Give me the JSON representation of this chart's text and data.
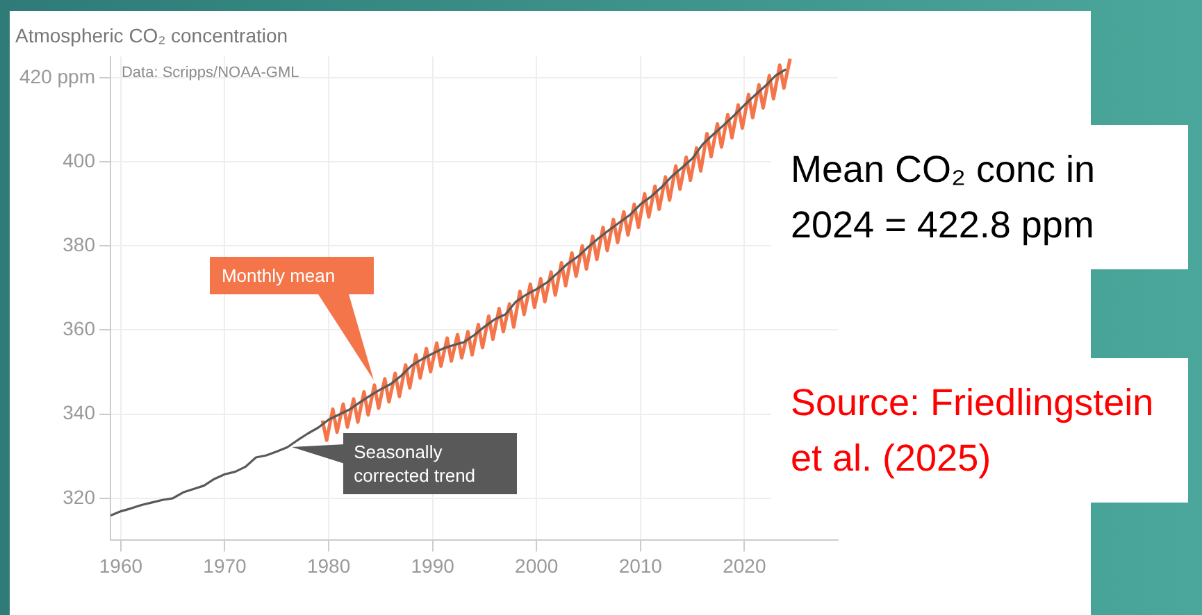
{
  "chart_data": {
    "type": "line",
    "title": "Atmospheric CO₂ concentration",
    "subtitle": "Data: Scripps/NOAA-GML",
    "annotations": [
      "Mean CO₂ conc in 2024 = 422.8 ppm",
      "Source: Friedlingstein et al. (2025)"
    ],
    "xlim": [
      1959,
      2029
    ],
    "xticks": [
      1960,
      1970,
      1980,
      1990,
      2000,
      2010,
      2020
    ],
    "ylim": [
      310,
      425
    ],
    "yticks": [
      320,
      340,
      360,
      380,
      400,
      {
        "value": 420,
        "label": "420 ppm"
      }
    ],
    "grid": true,
    "series": [
      {
        "name": "Monthly mean",
        "color": "#f4754a",
        "x": [
          1979.4,
          1979.8,
          1980.4,
          1980.8,
          1981.4,
          1981.8,
          1982.4,
          1982.8,
          1983.4,
          1983.8,
          1984.4,
          1984.8,
          1985.4,
          1985.8,
          1986.4,
          1986.8,
          1987.4,
          1987.8,
          1988.4,
          1988.8,
          1989.4,
          1989.8,
          1990.4,
          1990.8,
          1991.4,
          1991.8,
          1992.4,
          1992.8,
          1993.4,
          1993.8,
          1994.4,
          1994.8,
          1995.4,
          1995.8,
          1996.4,
          1996.8,
          1997.4,
          1997.8,
          1998.4,
          1998.8,
          1999.4,
          1999.8,
          2000.4,
          2000.8,
          2001.4,
          2001.8,
          2002.4,
          2002.8,
          2003.4,
          2003.8,
          2004.4,
          2004.8,
          2005.4,
          2005.8,
          2006.4,
          2006.8,
          2007.4,
          2007.8,
          2008.4,
          2008.8,
          2009.4,
          2009.8,
          2010.4,
          2010.8,
          2011.4,
          2011.8,
          2012.4,
          2012.8,
          2013.4,
          2013.8,
          2014.4,
          2014.8,
          2015.4,
          2015.8,
          2016.4,
          2016.8,
          2017.4,
          2017.8,
          2018.4,
          2018.8,
          2019.4,
          2019.8,
          2020.4,
          2020.8,
          2021.4,
          2021.8,
          2022.4,
          2022.8,
          2023.4,
          2023.8,
          2024.4
        ],
        "values": [
          338.5,
          333.8,
          341.2,
          335.7,
          342.4,
          336.9,
          343.6,
          338.1,
          345.3,
          339.8,
          346.9,
          341.4,
          348.4,
          342.9,
          349.7,
          344.2,
          351.7,
          346.2,
          354.1,
          348.6,
          355.6,
          350.1,
          356.9,
          351.4,
          358.1,
          352.6,
          358.9,
          353.4,
          359.6,
          354.1,
          361.3,
          355.8,
          363.3,
          357.8,
          365.1,
          359.6,
          366.2,
          360.7,
          369.2,
          363.7,
          370.9,
          365.4,
          372.2,
          366.7,
          373.8,
          368.3,
          376.0,
          370.5,
          378.3,
          372.8,
          380.0,
          374.5,
          382.3,
          376.8,
          384.4,
          378.9,
          386.3,
          380.8,
          388.1,
          382.6,
          389.9,
          384.4,
          392.4,
          386.9,
          394.2,
          388.7,
          396.4,
          390.9,
          399.0,
          393.5,
          401.1,
          395.6,
          403.3,
          397.8,
          406.7,
          401.2,
          409.0,
          403.5,
          411.2,
          405.7,
          413.5,
          408.0,
          416.0,
          410.5,
          418.3,
          412.8,
          420.5,
          415.0,
          423.0,
          417.5,
          424.5
        ]
      },
      {
        "name": "Seasonally corrected trend",
        "color": "#595959",
        "x": [
          1959,
          1960,
          1961,
          1962,
          1963,
          1964,
          1965,
          1966,
          1967,
          1968,
          1969,
          1970,
          1971,
          1972,
          1973,
          1974,
          1975,
          1976,
          1977,
          1978,
          1979,
          1980,
          1981,
          1982,
          1983,
          1984,
          1985,
          1986,
          1987,
          1988,
          1989,
          1990,
          1991,
          1992,
          1993,
          1994,
          1995,
          1996,
          1997,
          1998,
          1999,
          2000,
          2001,
          2002,
          2003,
          2004,
          2005,
          2006,
          2007,
          2008,
          2009,
          2010,
          2011,
          2012,
          2013,
          2014,
          2015,
          2016,
          2017,
          2018,
          2019,
          2020,
          2021,
          2022,
          2023,
          2024
        ],
        "values": [
          315.9,
          316.9,
          317.6,
          318.4,
          319.0,
          319.6,
          320.0,
          321.4,
          322.2,
          323.0,
          324.6,
          325.7,
          326.3,
          327.5,
          329.7,
          330.2,
          331.1,
          332.1,
          333.8,
          335.4,
          336.8,
          338.7,
          339.9,
          341.1,
          342.8,
          344.4,
          345.9,
          347.2,
          349.2,
          351.6,
          353.1,
          354.4,
          355.6,
          356.4,
          357.1,
          358.8,
          360.8,
          362.6,
          363.7,
          366.7,
          368.4,
          369.7,
          371.3,
          373.5,
          375.8,
          377.5,
          379.8,
          381.9,
          383.8,
          385.6,
          387.4,
          389.9,
          391.7,
          393.9,
          396.5,
          398.6,
          400.8,
          404.2,
          406.5,
          408.7,
          411.0,
          413.5,
          415.8,
          418.0,
          420.5,
          422.0
        ]
      }
    ]
  }
}
